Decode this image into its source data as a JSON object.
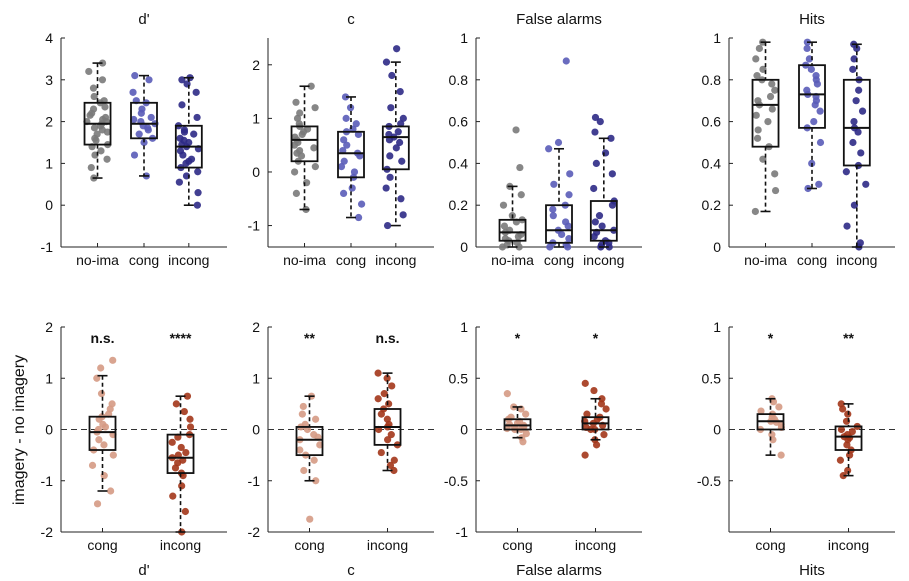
{
  "colors": {
    "gray": "#7a7a7a",
    "blue": "#5a5cb8",
    "navy": "#2e2a86",
    "light_brown": "#d59a84",
    "dark_brown": "#a3361a"
  },
  "ylabel_bottom": "imagery - no imagery",
  "chart_data": [
    {
      "type": "box",
      "title": "d'",
      "xlabel": "",
      "ylim": [
        -1,
        4
      ],
      "yticks": [
        "-1",
        "0",
        "1",
        "2",
        "3",
        "4"
      ],
      "categories": [
        "no-ima",
        "cong",
        "incong"
      ],
      "series_colors": [
        "gray",
        "blue",
        "navy"
      ],
      "boxes": [
        {
          "min": 0.65,
          "q1": 1.45,
          "median": 1.95,
          "q3": 2.45,
          "max": 3.4
        },
        {
          "min": 0.7,
          "q1": 1.6,
          "median": 1.95,
          "q3": 2.45,
          "max": 3.1
        },
        {
          "min": 0.0,
          "q1": 0.9,
          "median": 1.4,
          "q3": 1.9,
          "max": 3.05
        }
      ],
      "points": [
        [
          0.65,
          0.9,
          1.1,
          1.2,
          1.3,
          1.4,
          1.45,
          1.55,
          1.6,
          1.7,
          1.75,
          1.8,
          1.85,
          1.9,
          1.95,
          2.0,
          2.0,
          2.05,
          2.1,
          2.15,
          2.2,
          2.3,
          2.35,
          2.45,
          2.5,
          2.6,
          2.8,
          3.0,
          3.2,
          3.4
        ],
        [
          0.7,
          1.2,
          1.5,
          1.6,
          1.7,
          1.8,
          1.85,
          1.9,
          1.95,
          2.0,
          2.05,
          2.1,
          2.2,
          2.3,
          2.45,
          2.5,
          2.7,
          3.0,
          3.1
        ],
        [
          0.0,
          0.3,
          0.55,
          0.7,
          0.8,
          0.9,
          1.0,
          1.05,
          1.1,
          1.2,
          1.3,
          1.35,
          1.4,
          1.45,
          1.5,
          1.55,
          1.6,
          1.7,
          1.75,
          1.8,
          1.9,
          2.1,
          2.4,
          2.7,
          2.9,
          3.0,
          3.05
        ]
      ]
    },
    {
      "type": "box",
      "title": "c",
      "xlabel": "",
      "ylim": [
        -1.4,
        2.5
      ],
      "yticks": [
        "-1",
        "0",
        "1",
        "2"
      ],
      "categories": [
        "no-ima",
        "cong",
        "incong"
      ],
      "series_colors": [
        "gray",
        "blue",
        "navy"
      ],
      "boxes": [
        {
          "min": -0.7,
          "q1": 0.2,
          "median": 0.6,
          "q3": 0.85,
          "max": 1.6
        },
        {
          "min": -0.85,
          "q1": -0.1,
          "median": 0.35,
          "q3": 0.75,
          "max": 1.4
        },
        {
          "min": -1.0,
          "q1": 0.05,
          "median": 0.65,
          "q3": 0.85,
          "max": 2.05
        }
      ],
      "points": [
        [
          -0.7,
          -0.4,
          -0.2,
          0.0,
          0.1,
          0.2,
          0.3,
          0.35,
          0.4,
          0.45,
          0.5,
          0.55,
          0.6,
          0.65,
          0.7,
          0.75,
          0.8,
          0.85,
          0.9,
          1.0,
          1.1,
          1.2,
          1.3,
          1.6
        ],
        [
          -0.85,
          -0.6,
          -0.4,
          -0.3,
          -0.1,
          0.0,
          0.1,
          0.2,
          0.3,
          0.35,
          0.4,
          0.5,
          0.6,
          0.7,
          0.75,
          0.8,
          0.9,
          1.0,
          1.2,
          1.4
        ],
        [
          -1.0,
          -0.8,
          -0.5,
          -0.3,
          -0.1,
          0.05,
          0.2,
          0.3,
          0.45,
          0.55,
          0.6,
          0.65,
          0.7,
          0.75,
          0.85,
          0.9,
          1.0,
          1.2,
          1.5,
          1.8,
          2.05,
          2.3
        ]
      ]
    },
    {
      "type": "box",
      "title": "False alarms",
      "xlabel": "",
      "ylim": [
        0,
        1
      ],
      "yticks": [
        "0",
        "0.2",
        "0.4",
        "0.6",
        "0.8",
        "1"
      ],
      "categories": [
        "no-ima",
        "cong",
        "incong"
      ],
      "series_colors": [
        "gray",
        "blue",
        "navy"
      ],
      "boxes": [
        {
          "min": 0.0,
          "q1": 0.03,
          "median": 0.07,
          "q3": 0.13,
          "max": 0.29
        },
        {
          "min": 0.0,
          "q1": 0.02,
          "median": 0.08,
          "q3": 0.2,
          "max": 0.47
        },
        {
          "min": 0.0,
          "q1": 0.03,
          "median": 0.08,
          "q3": 0.22,
          "max": 0.52
        }
      ],
      "points": [
        [
          0.0,
          0.0,
          0.01,
          0.02,
          0.03,
          0.04,
          0.05,
          0.06,
          0.07,
          0.08,
          0.1,
          0.12,
          0.13,
          0.15,
          0.2,
          0.25,
          0.29,
          0.38,
          0.56
        ],
        [
          0.0,
          0.0,
          0.01,
          0.02,
          0.04,
          0.06,
          0.08,
          0.1,
          0.12,
          0.15,
          0.18,
          0.2,
          0.25,
          0.3,
          0.35,
          0.47,
          0.5,
          0.89
        ],
        [
          0.0,
          0.0,
          0.01,
          0.02,
          0.03,
          0.05,
          0.07,
          0.08,
          0.1,
          0.12,
          0.15,
          0.2,
          0.22,
          0.28,
          0.35,
          0.4,
          0.45,
          0.52,
          0.55,
          0.6,
          0.62
        ]
      ]
    },
    {
      "type": "box",
      "title": "Hits",
      "xlabel": "",
      "ylim": [
        0,
        1
      ],
      "yticks": [
        "0",
        "0.2",
        "0.4",
        "0.6",
        "0.8",
        "1"
      ],
      "categories": [
        "no-ima",
        "cong",
        "incong"
      ],
      "series_colors": [
        "gray",
        "blue",
        "navy"
      ],
      "boxes": [
        {
          "min": 0.17,
          "q1": 0.48,
          "median": 0.68,
          "q3": 0.8,
          "max": 0.98
        },
        {
          "min": 0.28,
          "q1": 0.57,
          "median": 0.73,
          "q3": 0.87,
          "max": 0.98
        },
        {
          "min": 0.0,
          "q1": 0.39,
          "median": 0.57,
          "q3": 0.8,
          "max": 0.97
        }
      ],
      "points": [
        [
          0.17,
          0.27,
          0.35,
          0.42,
          0.48,
          0.52,
          0.56,
          0.6,
          0.63,
          0.66,
          0.68,
          0.7,
          0.72,
          0.75,
          0.78,
          0.8,
          0.82,
          0.85,
          0.9,
          0.95,
          0.98
        ],
        [
          0.28,
          0.3,
          0.4,
          0.5,
          0.57,
          0.6,
          0.65,
          0.68,
          0.7,
          0.72,
          0.73,
          0.75,
          0.78,
          0.8,
          0.82,
          0.85,
          0.87,
          0.9,
          0.95,
          0.98
        ],
        [
          0.0,
          0.02,
          0.1,
          0.2,
          0.3,
          0.36,
          0.39,
          0.45,
          0.5,
          0.55,
          0.57,
          0.6,
          0.65,
          0.7,
          0.75,
          0.8,
          0.85,
          0.9,
          0.95,
          0.97
        ]
      ]
    },
    {
      "type": "box",
      "title": "",
      "xlabel": "d'",
      "ylim": [
        -2,
        2
      ],
      "yticks": [
        "-2",
        "-1",
        "0",
        "1",
        "2"
      ],
      "categories": [
        "cong",
        "incong"
      ],
      "series_colors": [
        "light_brown",
        "dark_brown"
      ],
      "significance": [
        "n.s.",
        "****"
      ],
      "boxes": [
        {
          "min": -1.2,
          "q1": -0.4,
          "median": -0.05,
          "q3": 0.25,
          "max": 1.05
        },
        {
          "min": -2.0,
          "q1": -0.85,
          "median": -0.55,
          "q3": -0.1,
          "max": 0.65
        }
      ],
      "points": [
        [
          -1.45,
          -1.2,
          -0.9,
          -0.7,
          -0.5,
          -0.4,
          -0.3,
          -0.2,
          -0.1,
          -0.05,
          0.0,
          0.05,
          0.1,
          0.2,
          0.25,
          0.3,
          0.4,
          0.5,
          0.7,
          1.0,
          1.2,
          1.35
        ],
        [
          -2.0,
          -1.6,
          -1.3,
          -1.1,
          -0.9,
          -0.85,
          -0.75,
          -0.65,
          -0.6,
          -0.55,
          -0.5,
          -0.45,
          -0.35,
          -0.25,
          -0.15,
          -0.1,
          0.05,
          0.2,
          0.35,
          0.5,
          0.65
        ]
      ]
    },
    {
      "type": "box",
      "title": "",
      "xlabel": "c",
      "ylim": [
        -2,
        2
      ],
      "yticks": [
        "-2",
        "-1",
        "0",
        "1",
        "2"
      ],
      "categories": [
        "cong",
        "incong"
      ],
      "series_colors": [
        "light_brown",
        "dark_brown"
      ],
      "significance": [
        "**",
        "n.s."
      ],
      "boxes": [
        {
          "min": -1.0,
          "q1": -0.5,
          "median": -0.2,
          "q3": 0.05,
          "max": 0.65
        },
        {
          "min": -0.8,
          "q1": -0.3,
          "median": 0.05,
          "q3": 0.4,
          "max": 1.1
        }
      ],
      "points": [
        [
          -1.75,
          -1.0,
          -0.8,
          -0.6,
          -0.5,
          -0.4,
          -0.3,
          -0.2,
          -0.15,
          -0.1,
          0.0,
          0.05,
          0.1,
          0.2,
          0.3,
          0.45,
          0.65
        ],
        [
          -0.8,
          -0.7,
          -0.6,
          -0.45,
          -0.3,
          -0.2,
          -0.1,
          0.0,
          0.05,
          0.1,
          0.2,
          0.3,
          0.4,
          0.5,
          0.6,
          0.7,
          0.85,
          1.0,
          1.1
        ]
      ]
    },
    {
      "type": "box",
      "title": "",
      "xlabel": "False alarms",
      "ylim": [
        -1,
        1
      ],
      "yticks": [
        "-1",
        "-0.5",
        "0",
        "0.5",
        "1"
      ],
      "categories": [
        "cong",
        "incong"
      ],
      "series_colors": [
        "light_brown",
        "dark_brown"
      ],
      "significance": [
        "*",
        "*"
      ],
      "boxes": [
        {
          "min": -0.08,
          "q1": 0.0,
          "median": 0.04,
          "q3": 0.1,
          "max": 0.22
        },
        {
          "min": -0.1,
          "q1": 0.0,
          "median": 0.06,
          "q3": 0.12,
          "max": 0.3
        }
      ],
      "points": [
        [
          -0.12,
          -0.08,
          -0.04,
          0.0,
          0.0,
          0.01,
          0.02,
          0.03,
          0.04,
          0.05,
          0.06,
          0.08,
          0.1,
          0.12,
          0.15,
          0.2,
          0.22,
          0.35
        ],
        [
          -0.25,
          -0.15,
          -0.1,
          -0.05,
          0.0,
          0.0,
          0.02,
          0.04,
          0.06,
          0.08,
          0.1,
          0.12,
          0.15,
          0.2,
          0.25,
          0.3,
          0.38,
          0.45
        ]
      ]
    },
    {
      "type": "box",
      "title": "",
      "xlabel": "Hits",
      "ylim": [
        -1,
        1
      ],
      "yticks": [
        "-0.5",
        "0",
        "0.5",
        "1"
      ],
      "categories": [
        "cong",
        "incong"
      ],
      "series_colors": [
        "light_brown",
        "dark_brown"
      ],
      "significance": [
        "*",
        "**"
      ],
      "boxes": [
        {
          "min": -0.25,
          "q1": 0.0,
          "median": 0.08,
          "q3": 0.15,
          "max": 0.3
        },
        {
          "min": -0.45,
          "q1": -0.2,
          "median": -0.07,
          "q3": 0.03,
          "max": 0.25
        }
      ],
      "points": [
        [
          -0.25,
          -0.1,
          -0.05,
          0.0,
          0.02,
          0.05,
          0.07,
          0.08,
          0.1,
          0.12,
          0.15,
          0.18,
          0.22,
          0.27,
          0.3
        ],
        [
          -0.45,
          -0.4,
          -0.3,
          -0.25,
          -0.2,
          -0.15,
          -0.1,
          -0.08,
          -0.07,
          -0.05,
          -0.02,
          0.0,
          0.03,
          0.08,
          0.15,
          0.2,
          0.25
        ]
      ]
    }
  ]
}
